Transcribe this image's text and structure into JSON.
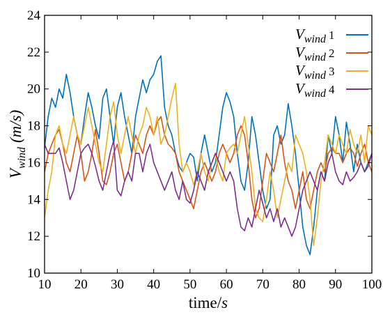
{
  "chart_data": {
    "type": "line",
    "title": "",
    "xlabel": {
      "main": "time/",
      "italic": "s"
    },
    "ylabel": {
      "main": "V",
      "sub": "wind",
      "unit": "(m/s)"
    },
    "xlim": [
      10,
      100
    ],
    "ylim": [
      10,
      24
    ],
    "xticks": [
      "10",
      "20",
      "30",
      "40",
      "50",
      "60",
      "70",
      "80",
      "90",
      "100"
    ],
    "yticks": [
      "10",
      "12",
      "14",
      "16",
      "18",
      "20",
      "22",
      "24"
    ],
    "grid": false,
    "legend_position": "top-right",
    "series": [
      {
        "legend": {
          "main": "V",
          "sub": "wind",
          "num": "1"
        },
        "color": "#0072BD",
        "x": [
          10,
          11,
          12,
          13,
          14,
          15,
          16,
          17,
          18,
          19,
          20,
          21,
          22,
          23,
          24,
          25,
          26,
          27,
          28,
          29,
          30,
          31,
          32,
          33,
          34,
          35,
          36,
          37,
          38,
          39,
          40,
          41,
          42,
          43,
          44,
          45,
          46,
          47,
          48,
          49,
          50,
          51,
          52,
          53,
          54,
          55,
          56,
          57,
          58,
          59,
          60,
          61,
          62,
          63,
          64,
          65,
          66,
          67,
          68,
          69,
          70,
          71,
          72,
          73,
          74,
          75,
          76,
          77,
          78,
          79,
          80,
          81,
          82,
          83,
          84,
          85,
          86,
          87,
          88,
          89,
          90,
          91,
          92,
          93,
          94,
          95,
          96,
          97,
          98,
          99,
          100
        ],
        "y": [
          16.8,
          18.5,
          19.5,
          19.0,
          20.0,
          19.5,
          20.8,
          19.8,
          18.5,
          17.5,
          17.0,
          18.5,
          19.8,
          19.0,
          18.0,
          17.3,
          19.5,
          20.0,
          18.5,
          17.0,
          19.0,
          19.8,
          18.5,
          17.5,
          16.5,
          18.5,
          19.5,
          20.5,
          19.8,
          20.5,
          20.8,
          21.5,
          21.8,
          19.0,
          18.0,
          17.5,
          16.5,
          15.8,
          15.5,
          16.0,
          16.5,
          16.3,
          15.0,
          16.5,
          17.5,
          16.5,
          15.5,
          16.0,
          17.5,
          19.0,
          19.8,
          19.3,
          18.5,
          16.5,
          15.0,
          14.5,
          16.0,
          18.5,
          17.5,
          16.0,
          14.5,
          13.5,
          14.0,
          17.5,
          18.0,
          17.0,
          17.5,
          19.2,
          18.0,
          16.5,
          14.5,
          12.5,
          11.5,
          11.0,
          12.5,
          14.5,
          15.5,
          15.0,
          17.5,
          16.5,
          18.5,
          17.5,
          16.0,
          18.2,
          17.0,
          15.5,
          17.0,
          16.0,
          15.5,
          16.0,
          16.5
        ]
      },
      {
        "legend": {
          "main": "V",
          "sub": "wind",
          "num": "2"
        },
        "color": "#D95319",
        "x": [
          10,
          11,
          12,
          13,
          14,
          15,
          16,
          17,
          18,
          19,
          20,
          21,
          22,
          23,
          24,
          25,
          26,
          27,
          28,
          29,
          30,
          31,
          32,
          33,
          34,
          35,
          36,
          37,
          38,
          39,
          40,
          41,
          42,
          43,
          44,
          45,
          46,
          47,
          48,
          49,
          50,
          51,
          52,
          53,
          54,
          55,
          56,
          57,
          58,
          59,
          60,
          61,
          62,
          63,
          64,
          65,
          66,
          67,
          68,
          69,
          70,
          71,
          72,
          73,
          74,
          75,
          76,
          77,
          78,
          79,
          80,
          81,
          82,
          83,
          84,
          85,
          86,
          87,
          88,
          89,
          90,
          91,
          92,
          93,
          94,
          95,
          96,
          97,
          98,
          99,
          100
        ],
        "y": [
          15.5,
          16.5,
          17.0,
          17.5,
          17.8,
          17.0,
          16.0,
          15.5,
          16.5,
          17.5,
          16.5,
          15.0,
          15.5,
          16.5,
          17.8,
          16.5,
          15.0,
          14.8,
          15.5,
          16.5,
          17.0,
          16.0,
          15.0,
          15.5,
          16.5,
          17.5,
          17.0,
          16.5,
          17.5,
          18.0,
          17.5,
          18.2,
          18.5,
          17.5,
          17.0,
          16.8,
          16.5,
          15.5,
          15.0,
          14.5,
          14.0,
          13.5,
          14.5,
          15.5,
          16.0,
          15.5,
          15.0,
          15.5,
          16.5,
          17.0,
          16.5,
          16.0,
          16.5,
          17.5,
          18.0,
          17.5,
          16.0,
          14.0,
          13.0,
          13.5,
          15.0,
          16.5,
          16.0,
          15.5,
          16.5,
          17.5,
          16.0,
          15.0,
          14.5,
          13.5,
          14.5,
          15.5,
          14.0,
          13.5,
          14.5,
          15.5,
          16.0,
          15.5,
          16.5,
          16.8,
          16.5,
          16.5,
          16.0,
          16.5,
          16.8,
          16.5,
          15.8,
          16.5,
          17.0,
          16.0,
          15.5
        ]
      },
      {
        "legend": {
          "main": "V",
          "sub": "wind",
          "num": "3"
        },
        "color": "#EDB120",
        "x": [
          10,
          11,
          12,
          13,
          14,
          15,
          16,
          17,
          18,
          19,
          20,
          21,
          22,
          23,
          24,
          25,
          26,
          27,
          28,
          29,
          30,
          31,
          32,
          33,
          34,
          35,
          36,
          37,
          38,
          39,
          40,
          41,
          42,
          43,
          44,
          45,
          46,
          47,
          48,
          49,
          50,
          51,
          52,
          53,
          54,
          55,
          56,
          57,
          58,
          59,
          60,
          61,
          62,
          63,
          64,
          65,
          66,
          67,
          68,
          69,
          70,
          71,
          72,
          73,
          74,
          75,
          76,
          77,
          78,
          79,
          80,
          81,
          82,
          83,
          84,
          85,
          86,
          87,
          88,
          89,
          90,
          91,
          92,
          93,
          94,
          95,
          96,
          97,
          98,
          99,
          100
        ],
        "y": [
          13.0,
          14.5,
          15.5,
          17.5,
          18.0,
          17.0,
          16.5,
          17.5,
          18.5,
          17.5,
          17.0,
          18.0,
          19.0,
          18.0,
          17.0,
          16.0,
          15.5,
          17.0,
          18.5,
          19.3,
          17.5,
          16.5,
          17.5,
          18.5,
          17.5,
          16.5,
          17.5,
          18.0,
          19.0,
          18.5,
          17.5,
          18.5,
          17.0,
          17.5,
          18.5,
          19.5,
          20.3,
          17.0,
          15.5,
          16.0,
          15.5,
          14.8,
          15.5,
          16.5,
          15.5,
          15.0,
          16.0,
          16.5,
          15.5,
          15.0,
          16.5,
          16.8,
          17.0,
          16.5,
          17.5,
          18.5,
          17.0,
          15.5,
          13.5,
          13.0,
          12.8,
          14.0,
          15.5,
          14.5,
          13.0,
          14.0,
          15.0,
          16.0,
          15.5,
          17.5,
          17.0,
          16.5,
          15.5,
          14.0,
          11.5,
          13.0,
          15.0,
          16.0,
          17.5,
          17.0,
          16.5,
          17.5,
          17.0,
          16.5,
          17.8,
          17.0,
          16.5,
          17.5,
          16.0,
          18.0,
          17.5
        ]
      },
      {
        "legend": {
          "main": "V",
          "sub": "wind",
          "num": "4"
        },
        "color": "#7E2F8E",
        "x": [
          10,
          11,
          12,
          13,
          14,
          15,
          16,
          17,
          18,
          19,
          20,
          21,
          22,
          23,
          24,
          25,
          26,
          27,
          28,
          29,
          30,
          31,
          32,
          33,
          34,
          35,
          36,
          37,
          38,
          39,
          40,
          41,
          42,
          43,
          44,
          45,
          46,
          47,
          48,
          49,
          50,
          51,
          52,
          53,
          54,
          55,
          56,
          57,
          58,
          59,
          60,
          61,
          62,
          63,
          64,
          65,
          66,
          67,
          68,
          69,
          70,
          71,
          72,
          73,
          74,
          75,
          76,
          77,
          78,
          79,
          80,
          81,
          82,
          83,
          84,
          85,
          86,
          87,
          88,
          89,
          90,
          91,
          92,
          93,
          94,
          95,
          96,
          97,
          98,
          99,
          100
        ],
        "y": [
          17.0,
          16.5,
          16.5,
          16.5,
          16.8,
          16.0,
          15.0,
          14.0,
          14.5,
          15.5,
          16.5,
          16.8,
          17.0,
          16.5,
          15.8,
          15.0,
          14.5,
          15.5,
          16.5,
          17.2,
          14.5,
          14.2,
          15.0,
          15.5,
          15.0,
          16.5,
          16.5,
          15.5,
          16.5,
          17.0,
          16.0,
          15.5,
          15.0,
          14.5,
          15.0,
          15.5,
          14.5,
          14.0,
          15.0,
          14.0,
          13.8,
          14.5,
          15.5,
          15.0,
          14.5,
          15.5,
          16.0,
          16.5,
          16.0,
          15.5,
          15.0,
          15.5,
          15.0,
          13.5,
          12.5,
          12.3,
          13.0,
          12.5,
          13.5,
          14.5,
          13.8,
          13.0,
          13.5,
          12.8,
          13.5,
          12.5,
          13.0,
          12.5,
          12.0,
          12.5,
          13.5,
          14.5,
          15.0,
          15.5,
          15.0,
          14.5,
          15.5,
          15.0,
          16.0,
          16.5,
          15.5,
          15.0,
          14.8,
          15.5,
          15.0,
          15.2,
          15.5,
          16.0,
          15.5,
          15.8,
          16.5
        ]
      }
    ]
  }
}
